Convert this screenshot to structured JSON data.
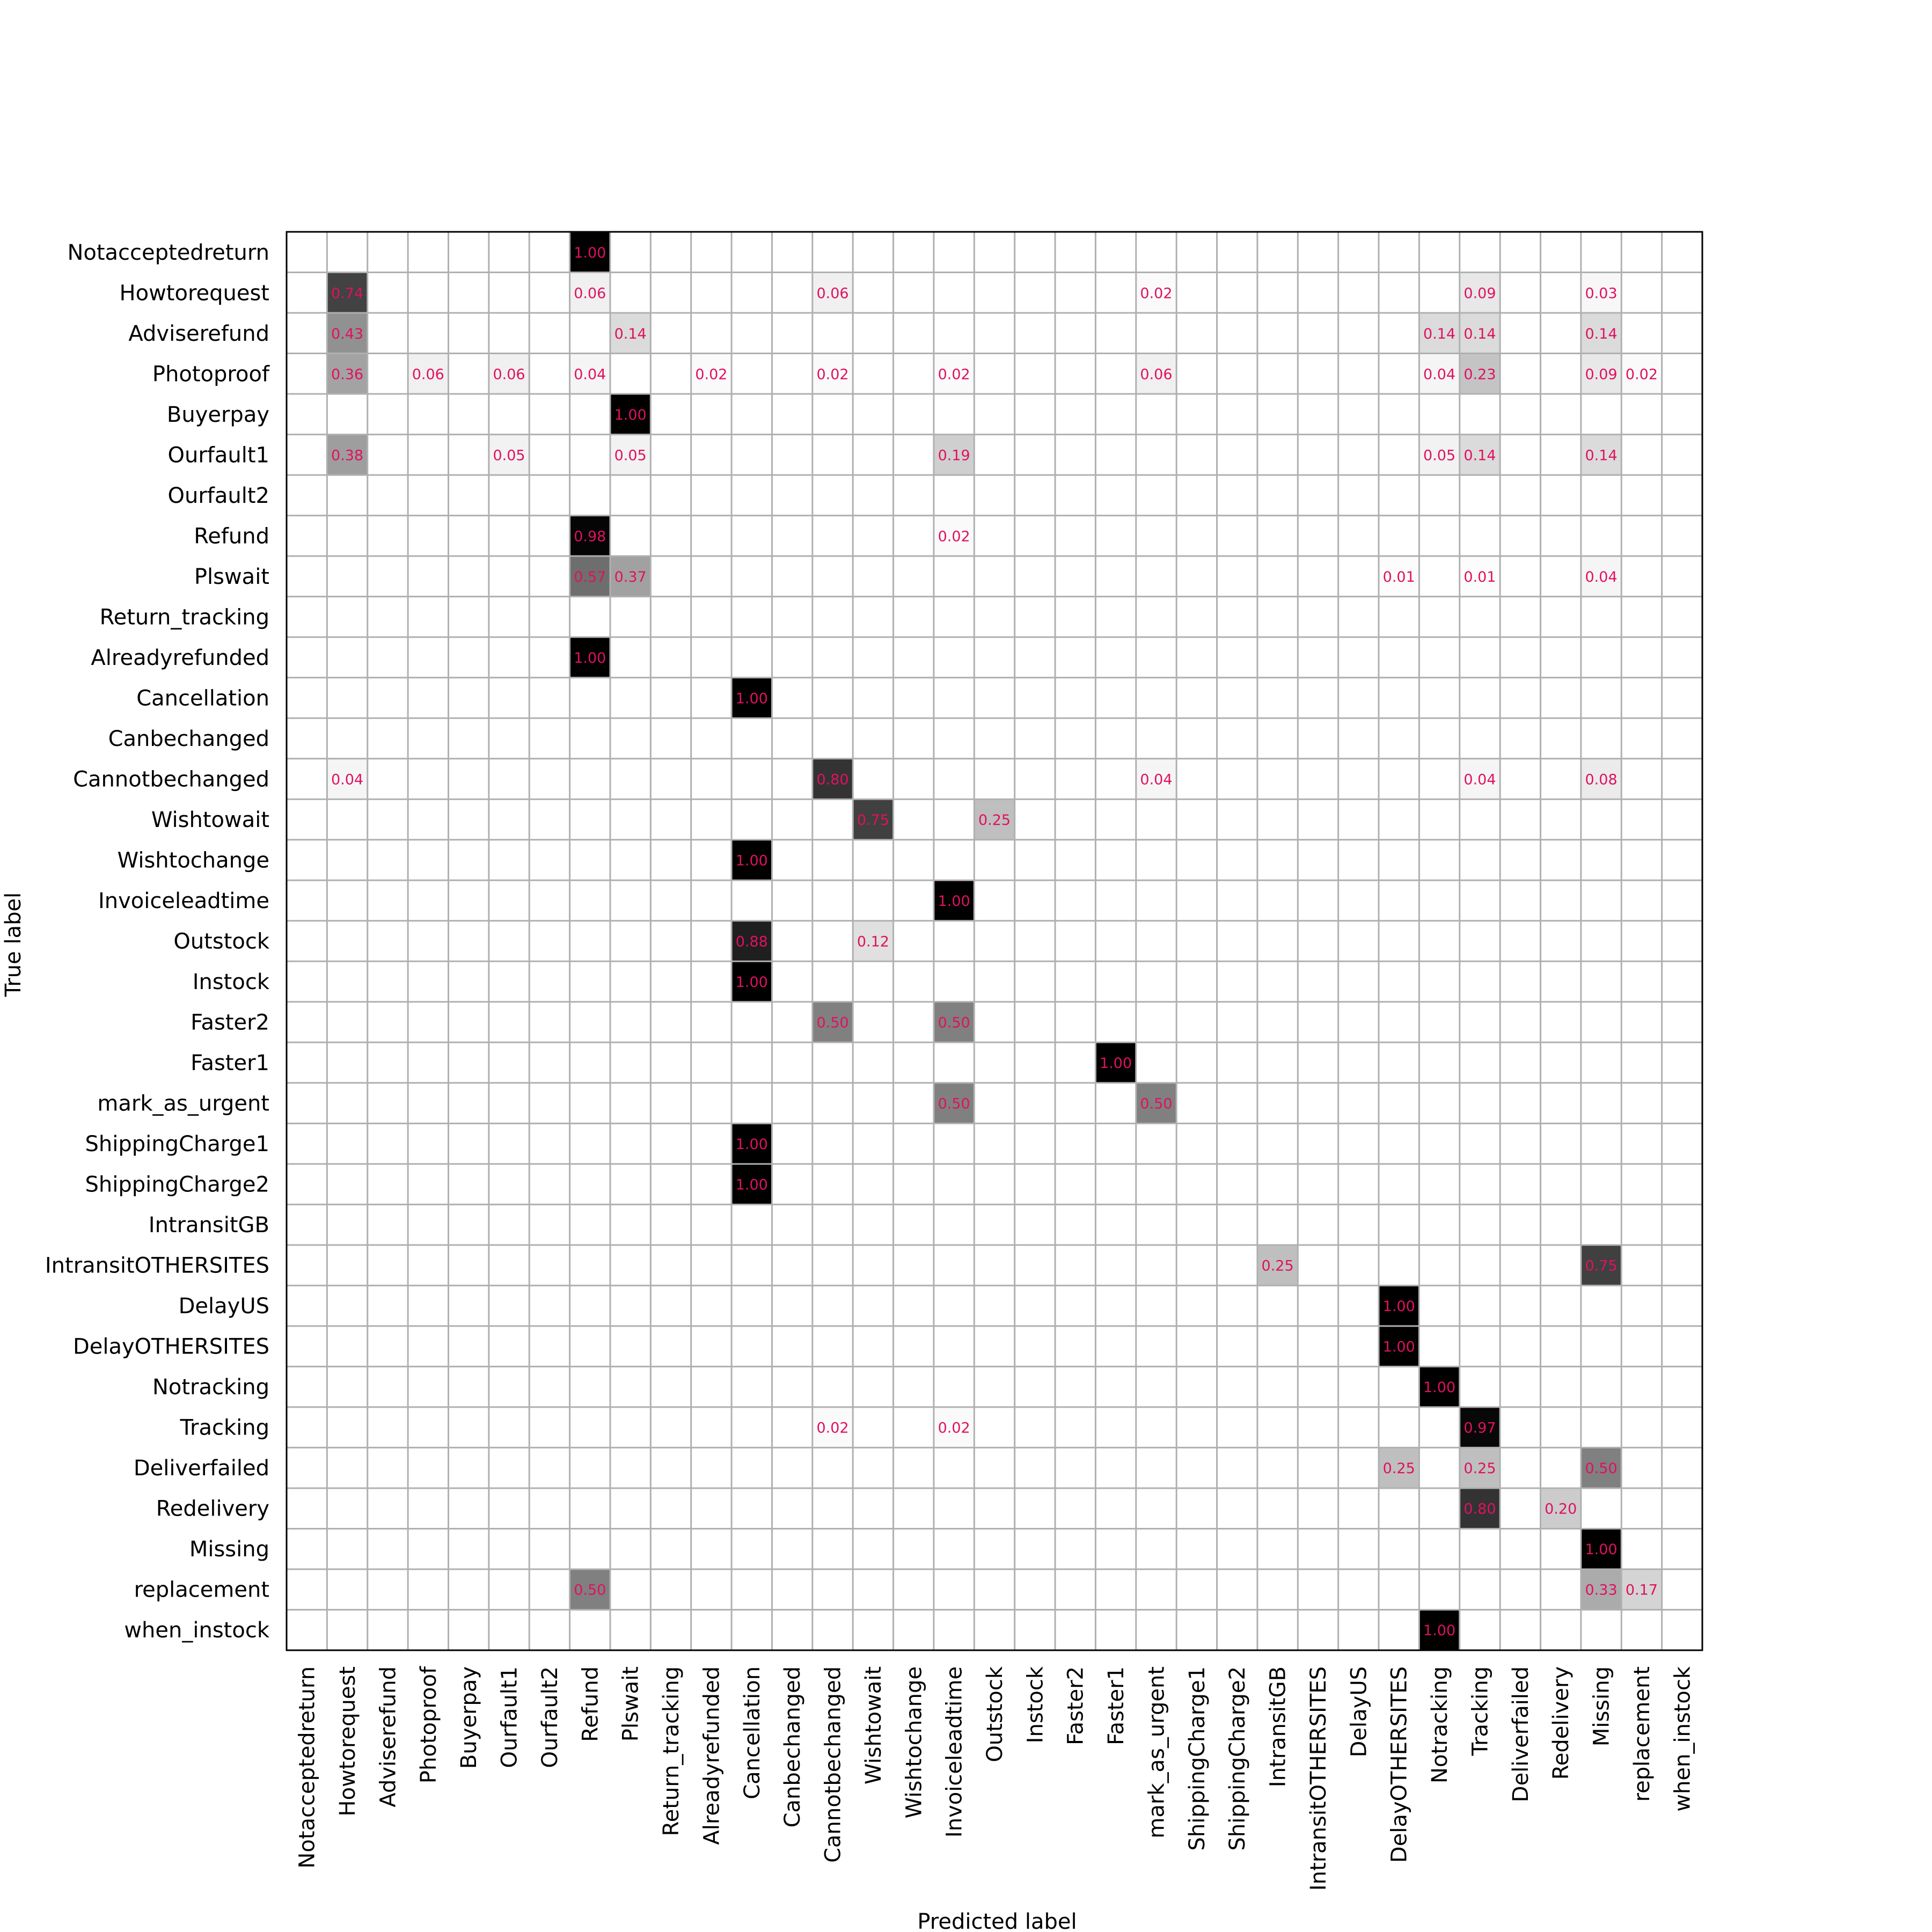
{
  "chart_data": {
    "type": "heatmap",
    "title": "",
    "xlabel": "Predicted label",
    "ylabel": "True label",
    "grid": true,
    "colormap": "greys",
    "value_text_color": "#e0115f",
    "labels": [
      "Notacceptedreturn",
      "Howtorequest",
      "Adviserefund",
      "Photoproof",
      "Buyerpay",
      "Ourfault1",
      "Ourfault2",
      "Refund",
      "Plswait",
      "Return_tracking",
      "Alreadyrefunded",
      "Cancellation",
      "Canbechanged",
      "Cannotbechanged",
      "Wishtowait",
      "Wishtochange",
      "Invoiceleadtime",
      "Outstock",
      "Instock",
      "Faster2",
      "Faster1",
      "mark_as_urgent",
      "ShippingCharge1",
      "ShippingCharge2",
      "IntransitGB",
      "IntransitOTHERSITES",
      "DelayUS",
      "DelayOTHERSITES",
      "Notracking",
      "Tracking",
      "Deliverfailed",
      "Redelivery",
      "Missing",
      "replacement",
      "when_instock"
    ],
    "cells": [
      {
        "r": 0,
        "c": 7,
        "v": "1.00"
      },
      {
        "r": 1,
        "c": 1,
        "v": "0.74"
      },
      {
        "r": 1,
        "c": 7,
        "v": "0.06"
      },
      {
        "r": 1,
        "c": 13,
        "v": "0.06"
      },
      {
        "r": 1,
        "c": 21,
        "v": "0.02"
      },
      {
        "r": 1,
        "c": 29,
        "v": "0.09"
      },
      {
        "r": 1,
        "c": 32,
        "v": "0.03"
      },
      {
        "r": 2,
        "c": 1,
        "v": "0.43"
      },
      {
        "r": 2,
        "c": 8,
        "v": "0.14"
      },
      {
        "r": 2,
        "c": 28,
        "v": "0.14"
      },
      {
        "r": 2,
        "c": 29,
        "v": "0.14"
      },
      {
        "r": 2,
        "c": 32,
        "v": "0.14"
      },
      {
        "r": 3,
        "c": 1,
        "v": "0.36"
      },
      {
        "r": 3,
        "c": 3,
        "v": "0.06"
      },
      {
        "r": 3,
        "c": 5,
        "v": "0.06"
      },
      {
        "r": 3,
        "c": 7,
        "v": "0.04"
      },
      {
        "r": 3,
        "c": 10,
        "v": "0.02"
      },
      {
        "r": 3,
        "c": 13,
        "v": "0.02"
      },
      {
        "r": 3,
        "c": 16,
        "v": "0.02"
      },
      {
        "r": 3,
        "c": 21,
        "v": "0.06"
      },
      {
        "r": 3,
        "c": 28,
        "v": "0.04"
      },
      {
        "r": 3,
        "c": 29,
        "v": "0.23"
      },
      {
        "r": 3,
        "c": 32,
        "v": "0.09"
      },
      {
        "r": 3,
        "c": 33,
        "v": "0.02"
      },
      {
        "r": 4,
        "c": 8,
        "v": "1.00"
      },
      {
        "r": 5,
        "c": 1,
        "v": "0.38"
      },
      {
        "r": 5,
        "c": 5,
        "v": "0.05"
      },
      {
        "r": 5,
        "c": 8,
        "v": "0.05"
      },
      {
        "r": 5,
        "c": 16,
        "v": "0.19"
      },
      {
        "r": 5,
        "c": 28,
        "v": "0.05"
      },
      {
        "r": 5,
        "c": 29,
        "v": "0.14"
      },
      {
        "r": 5,
        "c": 32,
        "v": "0.14"
      },
      {
        "r": 7,
        "c": 7,
        "v": "0.98"
      },
      {
        "r": 7,
        "c": 16,
        "v": "0.02"
      },
      {
        "r": 8,
        "c": 7,
        "v": "0.57"
      },
      {
        "r": 8,
        "c": 8,
        "v": "0.37"
      },
      {
        "r": 8,
        "c": 27,
        "v": "0.01"
      },
      {
        "r": 8,
        "c": 29,
        "v": "0.01"
      },
      {
        "r": 8,
        "c": 32,
        "v": "0.04"
      },
      {
        "r": 10,
        "c": 7,
        "v": "1.00"
      },
      {
        "r": 11,
        "c": 11,
        "v": "1.00"
      },
      {
        "r": 13,
        "c": 1,
        "v": "0.04"
      },
      {
        "r": 13,
        "c": 13,
        "v": "0.80"
      },
      {
        "r": 13,
        "c": 21,
        "v": "0.04"
      },
      {
        "r": 13,
        "c": 29,
        "v": "0.04"
      },
      {
        "r": 13,
        "c": 32,
        "v": "0.08"
      },
      {
        "r": 14,
        "c": 14,
        "v": "0.75"
      },
      {
        "r": 14,
        "c": 17,
        "v": "0.25"
      },
      {
        "r": 15,
        "c": 11,
        "v": "1.00"
      },
      {
        "r": 16,
        "c": 16,
        "v": "1.00"
      },
      {
        "r": 17,
        "c": 11,
        "v": "0.88"
      },
      {
        "r": 17,
        "c": 14,
        "v": "0.12"
      },
      {
        "r": 18,
        "c": 11,
        "v": "1.00"
      },
      {
        "r": 19,
        "c": 13,
        "v": "0.50"
      },
      {
        "r": 19,
        "c": 16,
        "v": "0.50"
      },
      {
        "r": 20,
        "c": 20,
        "v": "1.00"
      },
      {
        "r": 21,
        "c": 16,
        "v": "0.50"
      },
      {
        "r": 21,
        "c": 21,
        "v": "0.50"
      },
      {
        "r": 22,
        "c": 11,
        "v": "1.00"
      },
      {
        "r": 23,
        "c": 11,
        "v": "1.00"
      },
      {
        "r": 25,
        "c": 24,
        "v": "0.25"
      },
      {
        "r": 25,
        "c": 32,
        "v": "0.75"
      },
      {
        "r": 26,
        "c": 27,
        "v": "1.00"
      },
      {
        "r": 27,
        "c": 27,
        "v": "1.00"
      },
      {
        "r": 28,
        "c": 28,
        "v": "1.00"
      },
      {
        "r": 29,
        "c": 13,
        "v": "0.02"
      },
      {
        "r": 29,
        "c": 16,
        "v": "0.02"
      },
      {
        "r": 29,
        "c": 29,
        "v": "0.97"
      },
      {
        "r": 30,
        "c": 27,
        "v": "0.25"
      },
      {
        "r": 30,
        "c": 29,
        "v": "0.25"
      },
      {
        "r": 30,
        "c": 32,
        "v": "0.50"
      },
      {
        "r": 31,
        "c": 29,
        "v": "0.80"
      },
      {
        "r": 31,
        "c": 31,
        "v": "0.20"
      },
      {
        "r": 32,
        "c": 32,
        "v": "1.00"
      },
      {
        "r": 33,
        "c": 7,
        "v": "0.50"
      },
      {
        "r": 33,
        "c": 32,
        "v": "0.33"
      },
      {
        "r": 33,
        "c": 33,
        "v": "0.17"
      },
      {
        "r": 34,
        "c": 28,
        "v": "1.00"
      }
    ]
  }
}
